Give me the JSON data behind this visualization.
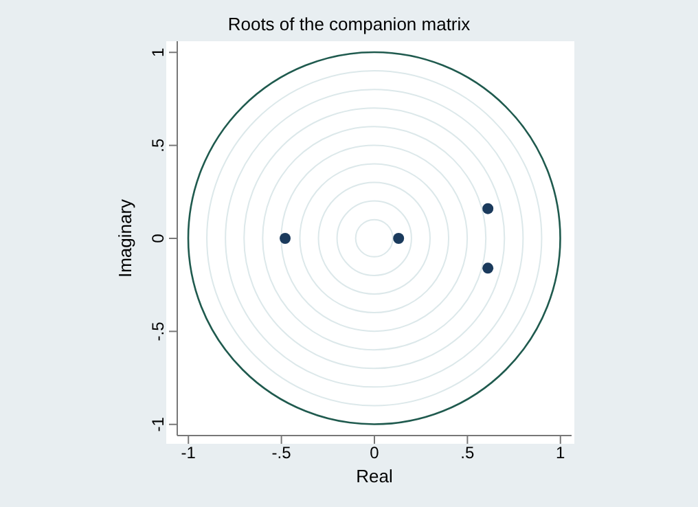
{
  "chart_data": {
    "type": "scatter",
    "title": "Roots of the companion matrix",
    "xlabel": "Real",
    "ylabel": "Imaginary",
    "xlim": [
      -1.06,
      1.06
    ],
    "ylim": [
      -1.06,
      1.06
    ],
    "xticks": [
      {
        "value": -1,
        "label": "-1"
      },
      {
        "value": -0.5,
        "label": "-.5"
      },
      0,
      {
        "value": 0.5,
        "label": ".5"
      },
      1
    ],
    "yticks": [
      {
        "value": -1,
        "label": "-1"
      },
      {
        "value": -0.5,
        "label": "-.5"
      },
      0,
      {
        "value": 0.5,
        "label": ".5"
      },
      1
    ],
    "series": [
      {
        "color": "#1a3a5c",
        "marker": "circle",
        "x": [
          -0.48,
          0.13,
          0.61,
          0.61
        ],
        "values": [
          0,
          0,
          0.16,
          -0.16
        ]
      }
    ]
  }
}
